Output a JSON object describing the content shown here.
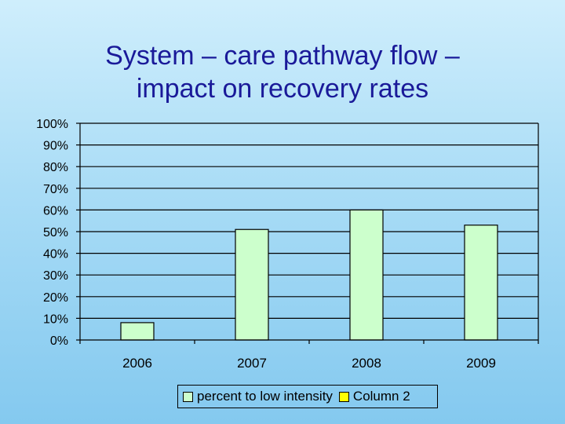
{
  "title_lines": [
    "System – care pathway flow –",
    "impact on recovery rates"
  ],
  "colors": {
    "bar_fill": "#ccffcc",
    "bar_stroke": "#000000",
    "grid": "#000000",
    "title": "#1a1a99",
    "legend_swatch_2": "#ffff00"
  },
  "chart_data": {
    "type": "bar",
    "title": "System – care pathway flow – impact on recovery rates",
    "categories": [
      "2006",
      "2007",
      "2008",
      "2009"
    ],
    "series": [
      {
        "name": "percent to low intensity",
        "values": [
          8,
          51,
          60,
          53
        ]
      },
      {
        "name": "Column 2",
        "values": [
          null,
          null,
          null,
          null
        ]
      }
    ],
    "ylim": [
      0,
      100
    ],
    "yticks": [
      0,
      10,
      20,
      30,
      40,
      50,
      60,
      70,
      80,
      90,
      100
    ],
    "ytick_labels": [
      "0%",
      "10%",
      "20%",
      "30%",
      "40%",
      "50%",
      "60%",
      "70%",
      "80%",
      "90%",
      "100%"
    ],
    "xlabel": "",
    "ylabel": "",
    "grid": true,
    "legend_position": "bottom"
  },
  "legend": {
    "items": [
      {
        "label": "percent to low intensity",
        "color": "#ccffcc"
      },
      {
        "label": "Column 2",
        "color": "#ffff00"
      }
    ]
  }
}
